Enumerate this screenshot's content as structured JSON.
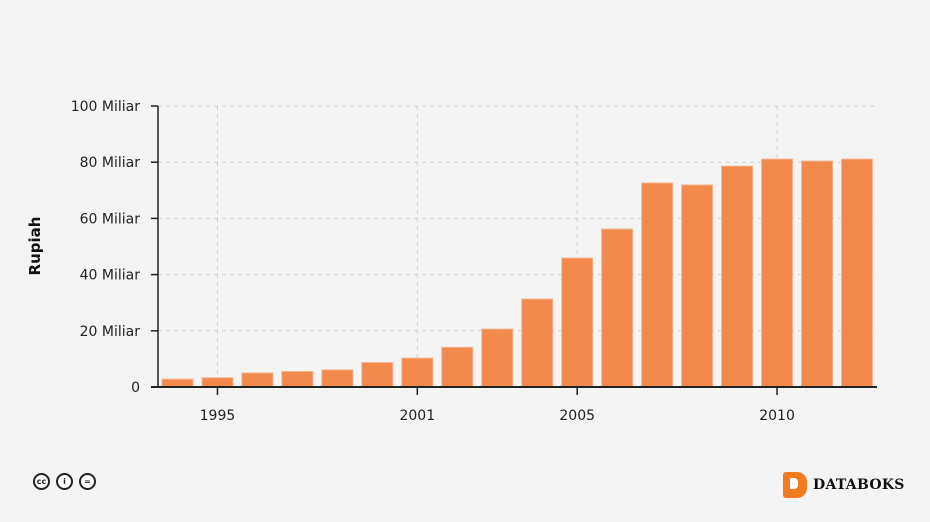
{
  "chart_data": {
    "type": "bar",
    "x": [
      1994,
      1995,
      1996,
      1997,
      1998,
      1999,
      2001,
      2002,
      2003,
      2004,
      2005,
      2006,
      2007,
      2008,
      2009,
      2010,
      2011,
      2012
    ],
    "values": [
      2.8,
      3.3,
      5.0,
      5.5,
      6.1,
      8.7,
      10.3,
      14.1,
      20.6,
      31.3,
      45.9,
      56.2,
      72.6,
      71.9,
      78.6,
      81.1,
      80.4,
      81.1
    ],
    "value_unit": "Miliar",
    "ylabel": "Rupiah",
    "xlabel": "",
    "ylim": [
      0,
      100
    ],
    "yticks": [
      0,
      20,
      40,
      60,
      80,
      100
    ],
    "ytick_labels": [
      "0",
      "20 Miliar",
      "40 Miliar",
      "60 Miliar",
      "80 Miliar",
      "100 Miliar"
    ],
    "xticks": [
      1995,
      2001,
      2005,
      2010
    ],
    "xtick_labels": [
      "1995",
      "2001",
      "2005",
      "2010"
    ],
    "grid": true,
    "bar_color": "#f28a4e"
  },
  "footer": {
    "license_icons": [
      "cc-icon",
      "by-icon",
      "nd-icon"
    ],
    "license_glyphs": [
      "cc",
      "i",
      "="
    ],
    "brand": "DATABOKS",
    "brand_color": "#f27b21"
  }
}
